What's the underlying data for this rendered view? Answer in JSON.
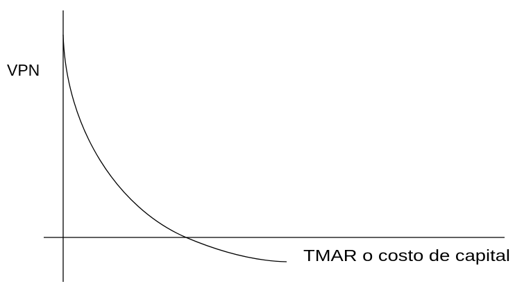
{
  "labels": {
    "y_axis": "VPN",
    "x_axis": "TMAR o costo de capital"
  }
}
